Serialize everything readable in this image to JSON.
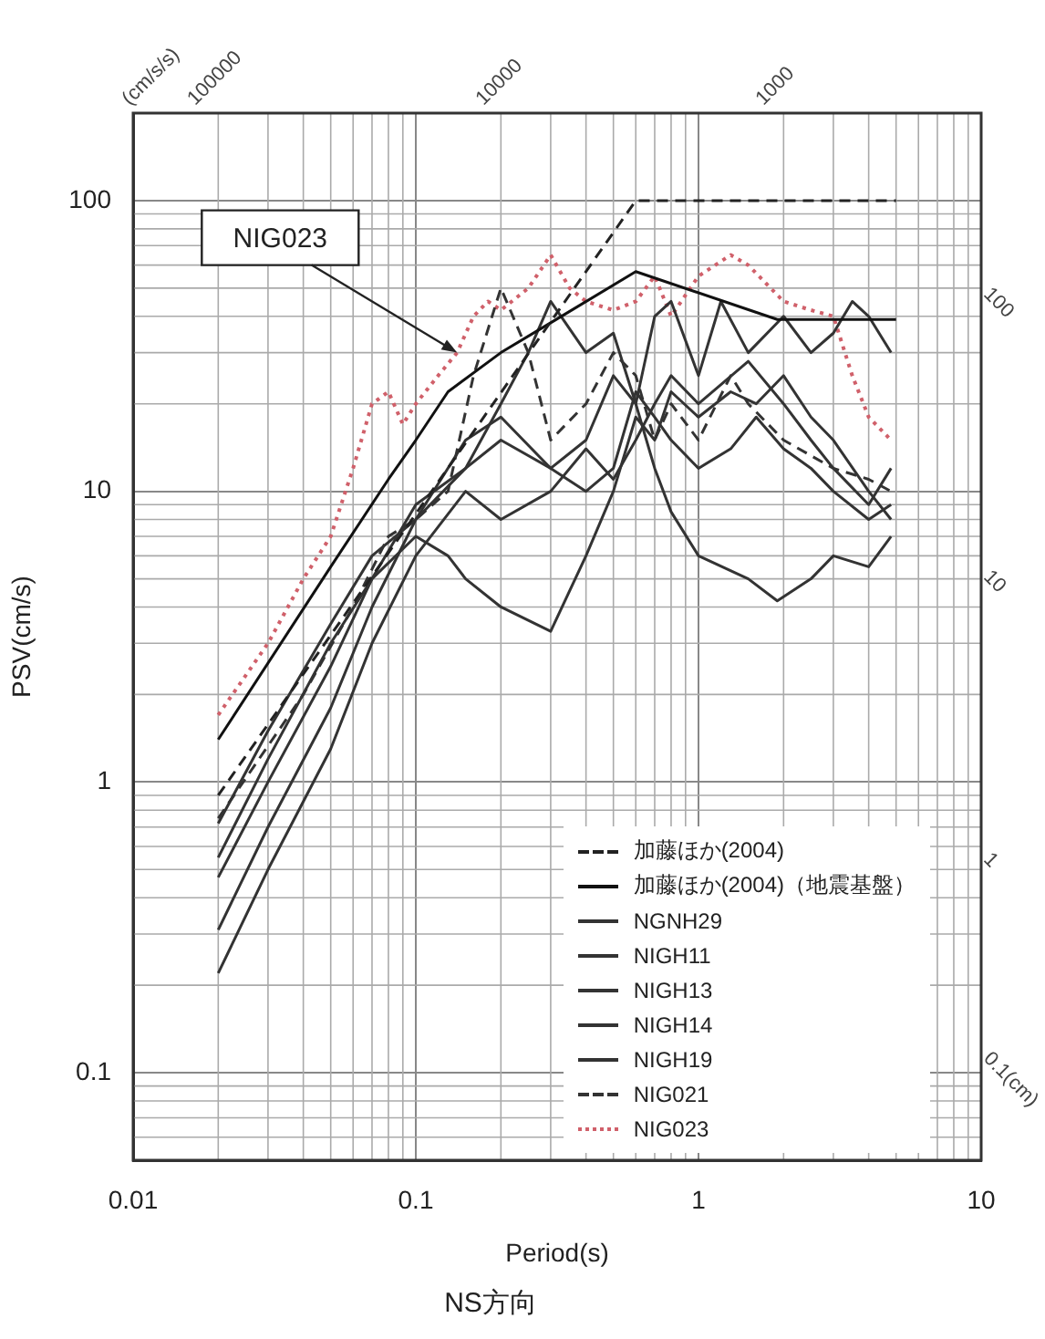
{
  "chart_data": {
    "type": "line",
    "title": "NS方向",
    "xlabel": "Period(s)",
    "ylabel": "PSV(cm/s)",
    "log": "xy",
    "xlim": [
      0.01,
      10
    ],
    "ylim": [
      0.05,
      200
    ],
    "xticks": [
      0.01,
      0.1,
      1,
      10
    ],
    "yticks": [
      0.1,
      1,
      10,
      100
    ],
    "grid": true,
    "legend": "bottom right",
    "series": [
      {
        "name": "加藤ほか(2004)",
        "color": "#222222",
        "line_style": "dashed",
        "x": [
          0.02,
          0.6,
          5
        ],
        "values": [
          0.9,
          100,
          100
        ]
      },
      {
        "name": "加藤ほか(2004)（地震基盤）",
        "color": "#111111",
        "line_style": "solid",
        "x": [
          0.02,
          0.05,
          0.08,
          0.1,
          0.13,
          0.2,
          0.3,
          0.6,
          1.9,
          5
        ],
        "values": [
          1.4,
          5.5,
          11,
          15,
          22,
          30,
          38,
          57,
          39,
          39
        ]
      },
      {
        "name": "NGNH29",
        "color": "#333333",
        "line_style": "solid",
        "x": [
          0.02,
          0.03,
          0.05,
          0.07,
          0.1,
          0.15,
          0.2,
          0.25,
          0.3,
          0.4,
          0.5,
          0.6,
          0.7,
          0.8,
          1,
          1.2,
          1.5,
          2,
          2.5,
          3,
          3.5,
          4,
          4.8
        ],
        "values": [
          0.72,
          1.5,
          3.5,
          6,
          8,
          12,
          20,
          30,
          45,
          30,
          35,
          20,
          40,
          45,
          25,
          45,
          30,
          40,
          30,
          35,
          45,
          40,
          30
        ]
      },
      {
        "name": "NIGH11",
        "color": "#333333",
        "line_style": "solid",
        "x": [
          0.02,
          0.03,
          0.05,
          0.07,
          0.1,
          0.13,
          0.15,
          0.2,
          0.3,
          0.4,
          0.5,
          0.6,
          0.7,
          0.8,
          1,
          1.3,
          1.6,
          2,
          2.5,
          3,
          4,
          4.8
        ],
        "values": [
          0.55,
          1.2,
          3,
          5,
          7,
          6,
          5,
          4,
          3.3,
          6,
          10,
          18,
          15,
          22,
          18,
          22,
          20,
          25,
          18,
          15,
          10,
          8
        ]
      },
      {
        "name": "NIGH13",
        "color": "#333333",
        "line_style": "solid",
        "x": [
          0.02,
          0.03,
          0.05,
          0.07,
          0.1,
          0.15,
          0.2,
          0.3,
          0.4,
          0.5,
          0.6,
          0.7,
          0.8,
          1,
          1.5,
          1.9,
          2.5,
          3,
          4,
          4.8
        ],
        "values": [
          0.47,
          1,
          2.5,
          5,
          9,
          12,
          15,
          12,
          15,
          25,
          20,
          12,
          8.5,
          6,
          5,
          4.2,
          5,
          6,
          5.5,
          7
        ]
      },
      {
        "name": "NIGH14",
        "color": "#333333",
        "line_style": "solid",
        "x": [
          0.02,
          0.03,
          0.05,
          0.07,
          0.1,
          0.15,
          0.2,
          0.3,
          0.4,
          0.5,
          0.6,
          0.7,
          0.8,
          1,
          1.3,
          1.6,
          2,
          2.5,
          3,
          4,
          4.8
        ],
        "values": [
          0.31,
          0.7,
          1.8,
          4,
          8,
          15,
          18,
          12,
          10,
          12,
          22,
          18,
          15,
          12,
          14,
          18,
          14,
          12,
          10,
          8,
          9
        ]
      },
      {
        "name": "NIGH19",
        "color": "#333333",
        "line_style": "solid",
        "x": [
          0.02,
          0.03,
          0.05,
          0.07,
          0.1,
          0.15,
          0.2,
          0.3,
          0.4,
          0.5,
          0.6,
          0.7,
          0.8,
          1,
          1.5,
          2,
          2.5,
          3,
          4,
          4.8
        ],
        "values": [
          0.22,
          0.5,
          1.3,
          3,
          6,
          10,
          8,
          10,
          14,
          11,
          15,
          20,
          25,
          20,
          28,
          20,
          15,
          12,
          9,
          12
        ]
      },
      {
        "name": "NIG021",
        "color": "#333333",
        "line_style": "dashed",
        "x": [
          0.02,
          0.04,
          0.06,
          0.08,
          0.1,
          0.13,
          0.16,
          0.2,
          0.25,
          0.3,
          0.4,
          0.5,
          0.6,
          0.7,
          0.8,
          1,
          1.3,
          1.5,
          2,
          3,
          4,
          4.8
        ],
        "values": [
          0.75,
          2,
          4,
          7,
          8,
          10,
          25,
          50,
          30,
          15,
          20,
          30,
          25,
          15,
          20,
          15,
          25,
          20,
          15,
          12,
          11,
          10
        ]
      },
      {
        "name": "NIG023",
        "color": "#d0606a",
        "line_style": "dotted",
        "x": [
          0.02,
          0.03,
          0.04,
          0.05,
          0.06,
          0.07,
          0.08,
          0.09,
          0.1,
          0.12,
          0.14,
          0.16,
          0.18,
          0.2,
          0.25,
          0.3,
          0.35,
          0.4,
          0.5,
          0.6,
          0.7,
          0.8,
          1,
          1.3,
          1.5,
          2,
          2.5,
          3,
          3.5,
          4,
          4.8
        ],
        "values": [
          1.7,
          3,
          5,
          7,
          12,
          20,
          22,
          17,
          20,
          25,
          30,
          40,
          45,
          42,
          50,
          65,
          50,
          45,
          42,
          45,
          55,
          40,
          55,
          65,
          60,
          45,
          42,
          40,
          25,
          18,
          15
        ]
      }
    ],
    "annotations": [
      {
        "text": "NIG023",
        "x": 0.14,
        "y": 30
      },
      "(cm/s/s)",
      "100000",
      "10000",
      "1000",
      "100",
      "10",
      "1",
      "0.1(cm)"
    ]
  }
}
